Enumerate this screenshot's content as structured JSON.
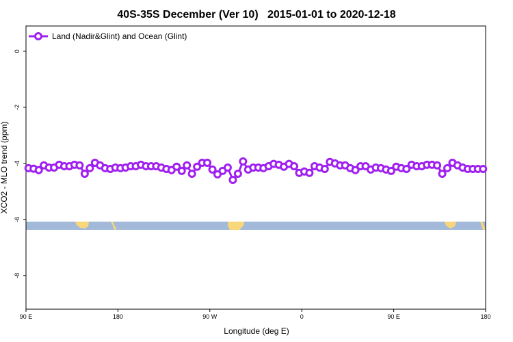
{
  "chart_data": {
    "type": "line",
    "title": "40S-35S December (Ver 10)   2015-01-01 to 2020-12-18",
    "x_label": "Longitude (deg E)",
    "y_label": "XCO2 - MLO trend (ppm)",
    "legend": "top-left",
    "x": [
      92.5,
      97.5,
      102.5,
      107.5,
      112.5,
      117.5,
      122.5,
      127.5,
      132.5,
      137.5,
      142.5,
      147.5,
      152.5,
      157.5,
      162.5,
      167.5,
      172.5,
      177.5,
      182.5,
      187.5,
      192.5,
      197.5,
      202.5,
      207.5,
      212.5,
      217.5,
      222.5,
      227.5,
      232.5,
      237.5,
      242.5,
      247.5,
      252.5,
      257.5,
      262.5,
      267.5,
      272.5,
      277.5,
      282.5,
      287.5,
      292.5,
      297.5,
      302.5,
      307.5,
      312.5,
      317.5,
      322.5,
      327.5,
      332.5,
      337.5,
      342.5,
      347.5,
      352.5,
      357.5,
      362.5,
      367.5,
      372.5,
      377.5,
      382.5,
      387.5,
      392.5,
      397.5,
      402.5,
      407.5,
      412.5,
      417.5,
      422.5,
      427.5,
      432.5,
      437.5,
      442.5,
      447.5,
      452.5,
      457.5,
      462.5,
      467.5,
      472.5,
      477.5,
      482.5,
      487.5,
      492.5,
      497.5,
      502.5,
      507.5,
      512.5,
      517.5,
      522.5,
      527.5,
      532.5,
      537.5
    ],
    "series": [
      {
        "name": "Land (Nadir&Glint) and Ocean (Glint)",
        "color": "#a020f0",
        "values": [
          -4.17,
          -4.19,
          -4.24,
          -4.07,
          -4.15,
          -4.15,
          -4.05,
          -4.1,
          -4.1,
          -4.05,
          -4.07,
          -4.37,
          -4.17,
          -3.98,
          -4.07,
          -4.17,
          -4.2,
          -4.15,
          -4.17,
          -4.15,
          -4.1,
          -4.1,
          -4.05,
          -4.1,
          -4.1,
          -4.1,
          -4.15,
          -4.2,
          -4.24,
          -4.12,
          -4.27,
          -4.07,
          -4.37,
          -4.12,
          -3.98,
          -3.98,
          -4.22,
          -4.39,
          -4.27,
          -4.15,
          -4.59,
          -4.37,
          -3.93,
          -4.22,
          -4.15,
          -4.15,
          -4.17,
          -4.1,
          -4.02,
          -4.05,
          -4.12,
          -4.02,
          -4.1,
          -4.34,
          -4.29,
          -4.34,
          -4.1,
          -4.15,
          -4.2,
          -3.95,
          -4.0,
          -4.07,
          -4.07,
          -4.17,
          -4.24,
          -4.1,
          -4.1,
          -4.22,
          -4.15,
          -4.17,
          -4.22,
          -4.27,
          -4.12,
          -4.17,
          -4.2,
          -4.05,
          -4.1,
          -4.1,
          -4.05,
          -4.05,
          -4.07,
          -4.37,
          -4.17,
          -3.98,
          -4.07,
          -4.15,
          -4.2,
          -4.2,
          -4.2,
          -4.2
        ]
      }
    ],
    "xlim": [
      90,
      540
    ],
    "xticks": [
      {
        "value": 90,
        "label": "90 E"
      },
      180,
      {
        "value": 270,
        "label": "90 W"
      },
      0,
      {
        "value": 450,
        "label": "90 E"
      },
      {
        "value": 540,
        "label": "180"
      }
    ],
    "ylim": [
      -9.2,
      0.9
    ],
    "yticks": [
      0,
      -2,
      -4,
      -6,
      -8
    ]
  }
}
